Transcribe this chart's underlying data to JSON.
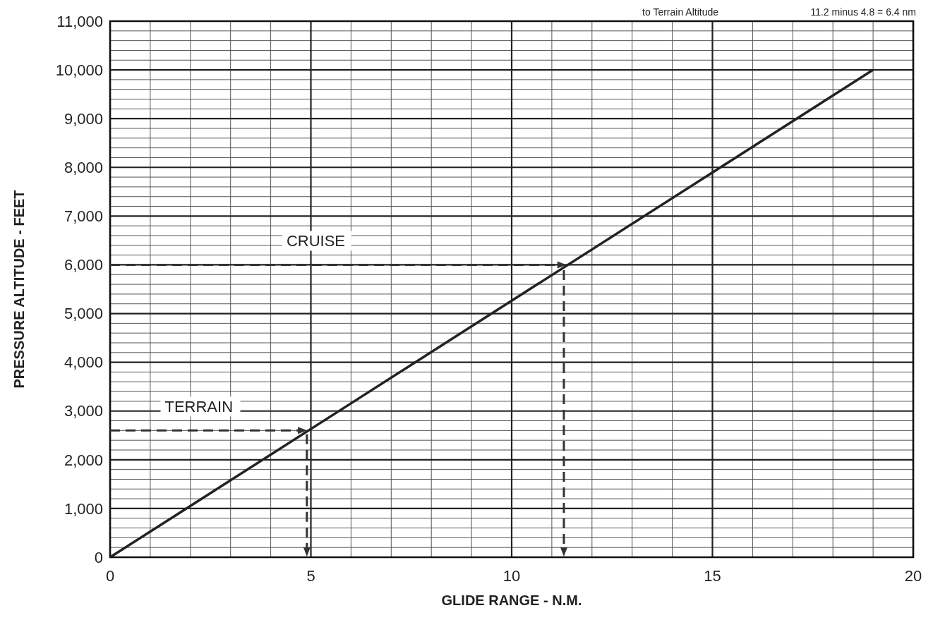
{
  "chart_data": {
    "type": "line",
    "xlabel": "GLIDE RANGE - N.M.",
    "ylabel": "PRESSURE ALTITUDE - FEET",
    "annotations": [
      "to Terrain Altitude",
      "11.2 minus 4.8 = 6.4 nm"
    ],
    "ref_lines": [
      {
        "axis": "y",
        "value": 6000,
        "label": "CRUISE",
        "line_style": "dashed",
        "color": "#333333"
      },
      {
        "axis": "x",
        "value": 11.3,
        "line_style": "dashed",
        "color": "#333333"
      },
      {
        "axis": "y",
        "value": 2600,
        "label": "TERRAIN",
        "line_style": "dashed",
        "color": "#333333"
      },
      {
        "axis": "x",
        "value": 4.9,
        "line_style": "dashed",
        "color": "#333333"
      }
    ],
    "series": [
      {
        "x": [
          0,
          19
        ],
        "values": [
          0,
          10000
        ],
        "color": "#222222",
        "line_style": "solid"
      }
    ],
    "xlim": [
      0,
      20
    ],
    "xticks": [
      0,
      5,
      10,
      15,
      20
    ],
    "ylim": [
      0,
      11000
    ],
    "yticks": [
      0,
      {
        "value": 1000,
        "label": "1,000"
      },
      {
        "value": 2000,
        "label": "2,000"
      },
      {
        "value": 3000,
        "label": "3,000"
      },
      {
        "value": 4000,
        "label": "4,000"
      },
      {
        "value": 5000,
        "label": "5,000"
      },
      {
        "value": 6000,
        "label": "6,000"
      },
      {
        "value": 7000,
        "label": "7,000"
      },
      {
        "value": 8000,
        "label": "8,000"
      },
      {
        "value": 9000,
        "label": "9,000"
      },
      {
        "value": 10000,
        "label": "10,000"
      },
      {
        "value": 11000,
        "label": "11,000"
      }
    ],
    "grid": true
  }
}
